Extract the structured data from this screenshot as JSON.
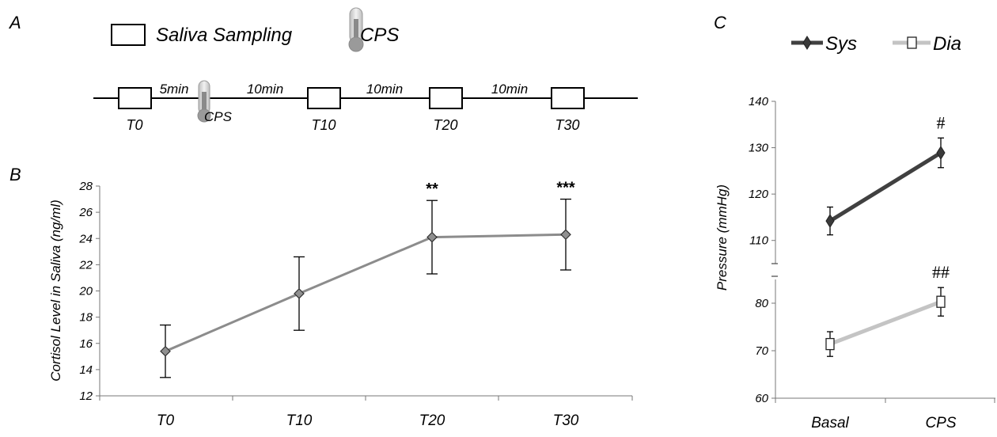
{
  "panel_a": {
    "label": "A",
    "legend": {
      "saliva_label": "Saliva Sampling",
      "cps_label": "CPS"
    },
    "timeline": {
      "samples": [
        "T0",
        "T10",
        "T20",
        "T30"
      ],
      "intervals": [
        "5min",
        "10min",
        "10min",
        "10min"
      ],
      "cps_label": "CPS"
    }
  },
  "panel_b_label": "B",
  "panel_c_label": "C",
  "chart_data": [
    {
      "type": "line",
      "panel": "B",
      "ylabel": "Cortisol Level in Saliva (ng/ml)",
      "categories": [
        "T0",
        "T10",
        "T20",
        "T30"
      ],
      "ylim": [
        12,
        28
      ],
      "yticks": [
        12,
        14,
        16,
        18,
        20,
        22,
        24,
        26,
        28
      ],
      "series": [
        {
          "values": [
            15.4,
            19.8,
            24.1,
            24.3
          ],
          "errors": [
            2.0,
            2.8,
            2.8,
            2.7
          ],
          "color": "#8c8c8c"
        }
      ],
      "annotations": [
        "",
        "",
        "**",
        "***"
      ]
    },
    {
      "type": "line",
      "panel": "C",
      "ylabel": "Pressure (mmHg)",
      "categories": [
        "Basal",
        "CPS"
      ],
      "broken_axis": true,
      "upper_ylim": [
        105,
        140
      ],
      "upper_yticks": [
        110,
        120,
        130,
        140
      ],
      "lower_ylim": [
        60,
        85
      ],
      "lower_yticks": [
        60,
        70,
        80
      ],
      "legend_placement": "top",
      "series": [
        {
          "name": "Sys",
          "values": [
            114.2,
            128.9
          ],
          "errors": [
            3.0,
            3.2
          ],
          "color": "#404040",
          "marker": "diamond"
        },
        {
          "name": "Dia",
          "values": [
            71.4,
            80.3
          ],
          "errors": [
            2.6,
            3.0
          ],
          "color": "#c4c4c4",
          "marker": "square"
        }
      ],
      "annotations": {
        "Sys": [
          "",
          "#"
        ],
        "Dia": [
          "",
          "##"
        ]
      }
    }
  ]
}
